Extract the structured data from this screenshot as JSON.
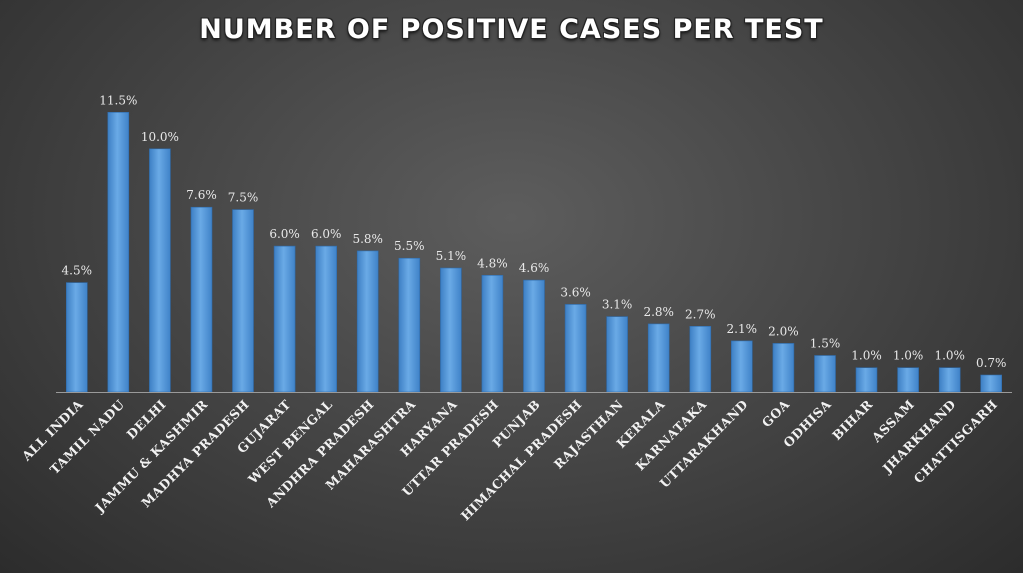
{
  "chart_data": {
    "type": "bar",
    "title": "NUMBER OF POSITIVE CASES PER TEST",
    "xlabel": "",
    "ylabel": "",
    "ylim": [
      0,
      12.5
    ],
    "grid": false,
    "legend": "none",
    "bar_color": "#5b9bd5",
    "categories": [
      "ALL INDIA",
      "TAMIL NADU",
      "DELHI",
      "JAMMU & KASHMIR",
      "MADHYA PRADESH",
      "GUJARAT",
      "WEST BENGAL",
      "ANDHRA PRADESH",
      "MAHARASHTRA",
      "HARYANA",
      "UTTAR PRADESH",
      "PUNJAB",
      "HIMACHAL PRADESH",
      "RAJASTHAN",
      "KERALA",
      "KARNATAKA",
      "UTTARAKHAND",
      "GOA",
      "ODHISA",
      "BIHAR",
      "ASSAM",
      "JHARKHAND",
      "CHATTISGARH"
    ],
    "values": [
      4.5,
      11.5,
      10.0,
      7.6,
      7.5,
      6.0,
      6.0,
      5.8,
      5.5,
      5.1,
      4.8,
      4.6,
      3.6,
      3.1,
      2.8,
      2.7,
      2.1,
      2.0,
      1.5,
      1.0,
      1.0,
      1.0,
      0.7
    ],
    "data_labels": [
      "4.5%",
      "11.5%",
      "10.0%",
      "7.6%",
      "7.5%",
      "6.0%",
      "6.0%",
      "5.8%",
      "5.5%",
      "5.1%",
      "4.8%",
      "4.6%",
      "3.6%",
      "3.1%",
      "2.8%",
      "2.7%",
      "2.1%",
      "2.0%",
      "1.5%",
      "1.0%",
      "1.0%",
      "1.0%",
      "0.7%"
    ]
  }
}
